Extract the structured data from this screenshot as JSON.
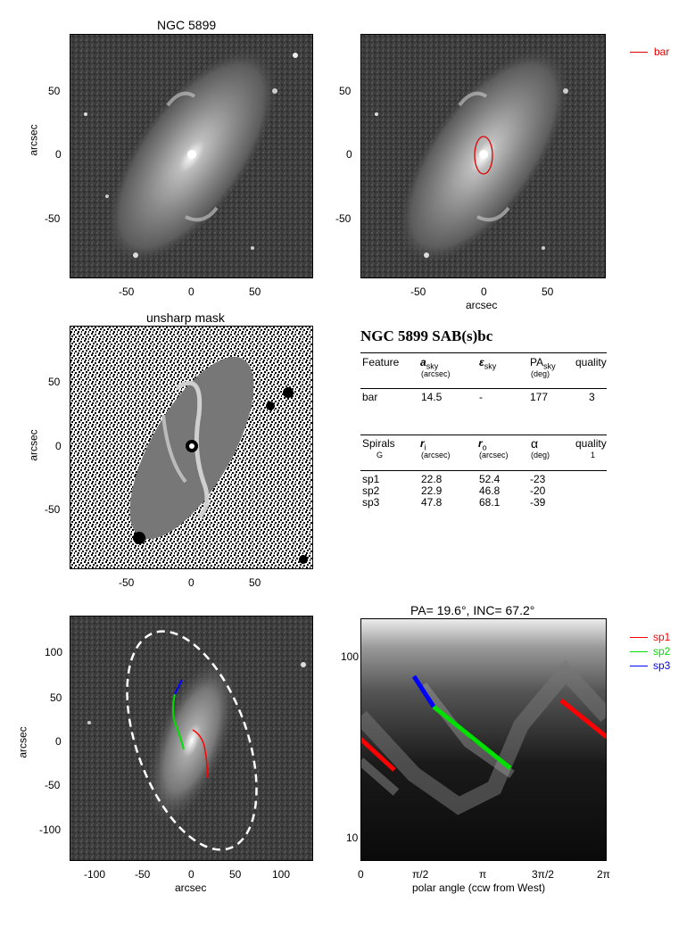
{
  "panel1": {
    "title": "NGC 5899",
    "ylabel": "arcsec",
    "xticks": [
      "-50",
      "0",
      "50"
    ],
    "yticks": [
      "50",
      "0",
      "-50"
    ]
  },
  "panel2": {
    "xlabel": "arcsec",
    "xticks": [
      "-50",
      "0",
      "50"
    ],
    "yticks": [
      "50",
      "0",
      "-50"
    ],
    "legend": "bar",
    "legend_color": "#e00000"
  },
  "panel3": {
    "title": "unsharp mask",
    "ylabel": "arcsec",
    "xticks": [
      "-50",
      "0",
      "50"
    ],
    "yticks": [
      "50",
      "0",
      "-50"
    ]
  },
  "table": {
    "heading": "NGC 5899  SAB(s)bc",
    "bar_header": {
      "feature": "Feature",
      "a": "a",
      "a_sub": "sky",
      "a_unit": "(arcsec)",
      "eps": "ε",
      "eps_sub": "sky",
      "pa": "PA",
      "pa_sub": "sky",
      "pa_unit": "(deg)",
      "quality": "quality"
    },
    "bar_row": {
      "feature": "bar",
      "a": "14.5",
      "eps": "-",
      "pa": "177",
      "quality": "3"
    },
    "spiral_header": {
      "label": "Spirals",
      "class": "G",
      "ri": "r",
      "ri_sub": "i",
      "ri_unit": "(arcsec)",
      "ro": "r",
      "ro_sub": "o",
      "ro_unit": "(arcsec)",
      "alpha": "α",
      "alpha_unit": "(deg)",
      "quality": "quality",
      "quality_val": "1"
    },
    "spirals": [
      {
        "name": "sp1",
        "ri": "22.8",
        "ro": "52.4",
        "alpha": "-23"
      },
      {
        "name": "sp2",
        "ri": "22.9",
        "ro": "46.8",
        "alpha": "-20"
      },
      {
        "name": "sp3",
        "ri": "47.8",
        "ro": "68.1",
        "alpha": "-39"
      }
    ]
  },
  "panel4": {
    "ylabel": "arcsec",
    "xlabel": "arcsec",
    "xticks": [
      "-100",
      "-50",
      "0",
      "50",
      "100"
    ],
    "yticks": [
      "100",
      "50",
      "0",
      "-50",
      "-100"
    ]
  },
  "panel5": {
    "title": "PA=  19.6°, INC=  67.2°",
    "xlabel": "polar angle (ccw from West)",
    "xticks": [
      "0",
      "π/2",
      "π",
      "3π/2",
      "2π"
    ],
    "yticks": [
      "100",
      "10"
    ],
    "legend": [
      {
        "name": "sp1",
        "color": "#ff0000"
      },
      {
        "name": "sp2",
        "color": "#00e000"
      },
      {
        "name": "sp3",
        "color": "#0000ff"
      }
    ]
  }
}
